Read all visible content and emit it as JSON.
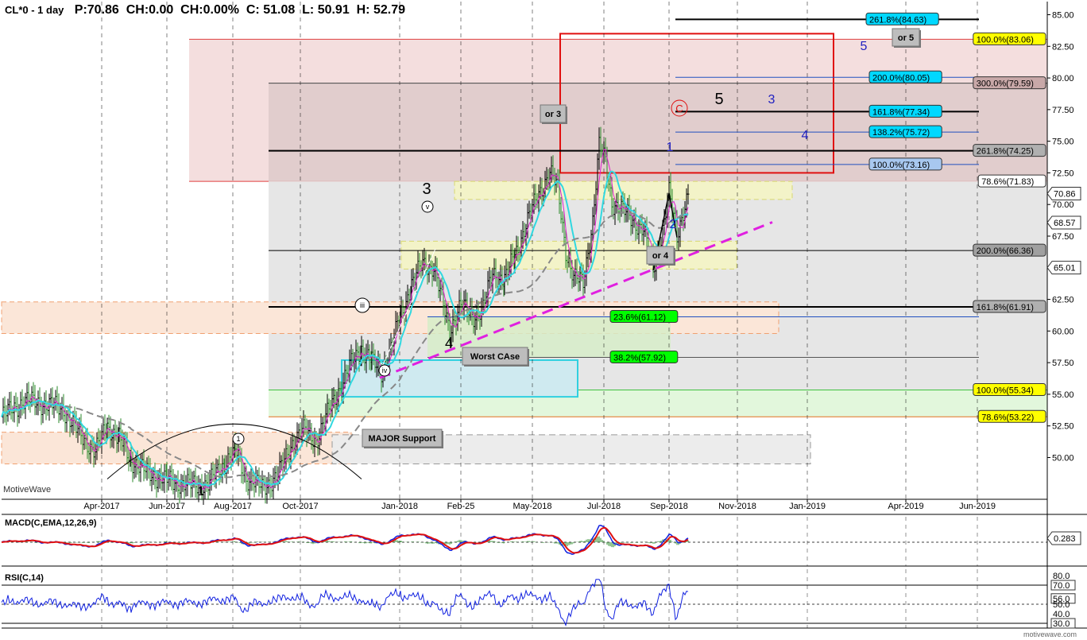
{
  "header": {
    "symbol": "CL*0 - 1 day",
    "price": "P:70.86",
    "change": "CH:0.00",
    "change_pct": "CH:0.00%",
    "close": "C: 51.08",
    "low": "L: 50.91",
    "high": "H: 52.79"
  },
  "watermark_left": "MotiveWave",
  "watermark_bottom": "motivewave.com",
  "chart_data": [
    {
      "type": "line",
      "panel": "price",
      "x_tick_labels": [
        "Apr-2017",
        "Jun-2017",
        "Aug-2017",
        "Oct-2017",
        "Jan-2018",
        "Feb-25",
        "May-2018",
        "Jul-2018",
        "Sep-2018",
        "Nov-2018",
        "Jan-2019",
        "Apr-2019",
        "Jun-2019"
      ],
      "y_tick_labels": [
        "85.00",
        "82.50",
        "80.00",
        "77.50",
        "75.00",
        "72.50",
        "70.00",
        "67.50",
        "65.00",
        "62.50",
        "60.00",
        "57.50",
        "55.00",
        "52.50",
        "50.00"
      ],
      "ylim": [
        47.5,
        86.5
      ],
      "grid": true,
      "price_markers": [
        {
          "label": "70.86",
          "value": 70.86,
          "color": "#ffffff"
        },
        {
          "label": "68.57",
          "value": 68.57,
          "color": "#ffffff"
        },
        {
          "label": "65.01",
          "value": 65.01,
          "color": "#ffffff"
        }
      ],
      "fib_levels": [
        {
          "label": "261.8%(84.63)",
          "value": 84.63,
          "color": "#00d8ff"
        },
        {
          "label": "100.0%(83.06)",
          "value": 83.06,
          "color": "#ffff00"
        },
        {
          "label": "200.0%(80.05)",
          "value": 80.05,
          "color": "#00d8ff"
        },
        {
          "label": "300.0%(79.59)",
          "value": 79.59,
          "color": "#c8a8a8"
        },
        {
          "label": "161.8%(77.34)",
          "value": 77.34,
          "color": "#00d8ff"
        },
        {
          "label": "138.2%(75.72)",
          "value": 75.72,
          "color": "#00d8ff"
        },
        {
          "label": "261.8%(74.25)",
          "value": 74.25,
          "color": "#b0b0b0"
        },
        {
          "label": "100.0%(73.16)",
          "value": 73.16,
          "color": "#a8c8f0"
        },
        {
          "label": "78.6%(71.83)",
          "value": 71.83,
          "color": "#ffffff"
        },
        {
          "label": "200.0%(66.36)",
          "value": 66.36,
          "color": "#a0a0a0"
        },
        {
          "label": "161.8%(61.91)",
          "value": 61.91,
          "color": "#b0b0b0"
        },
        {
          "label": "23.6%(61.12)",
          "value": 61.12,
          "color": "#00ff00"
        },
        {
          "label": "38.2%(57.92)",
          "value": 57.92,
          "color": "#00ff00"
        },
        {
          "label": "100.0%(55.34)",
          "value": 55.34,
          "color": "#ffff00"
        },
        {
          "label": "78.6%(53.22)",
          "value": 53.22,
          "color": "#ffff00"
        }
      ],
      "wave_labels": [
        "5",
        "3",
        "4",
        "1",
        "2",
        "3",
        "4",
        "1",
        "5"
      ],
      "circled_labels": [
        "iii",
        "v",
        "iv",
        "1",
        "C"
      ],
      "annotations": [
        "or 3",
        "or 5",
        "or 4",
        "Worst CAse",
        "MAJOR Support"
      ]
    },
    {
      "type": "line",
      "panel": "macd",
      "title": "MACD(C,EMA,12,26,9)",
      "value_label": "0.283",
      "value": 0.283
    },
    {
      "type": "line",
      "panel": "rsi",
      "title": "RSI(C,14)",
      "y_tick_labels": [
        "80.0",
        "70.0",
        "56.0",
        "50.0",
        "40.0",
        "30.0"
      ],
      "ylim": [
        25,
        85
      ]
    }
  ]
}
